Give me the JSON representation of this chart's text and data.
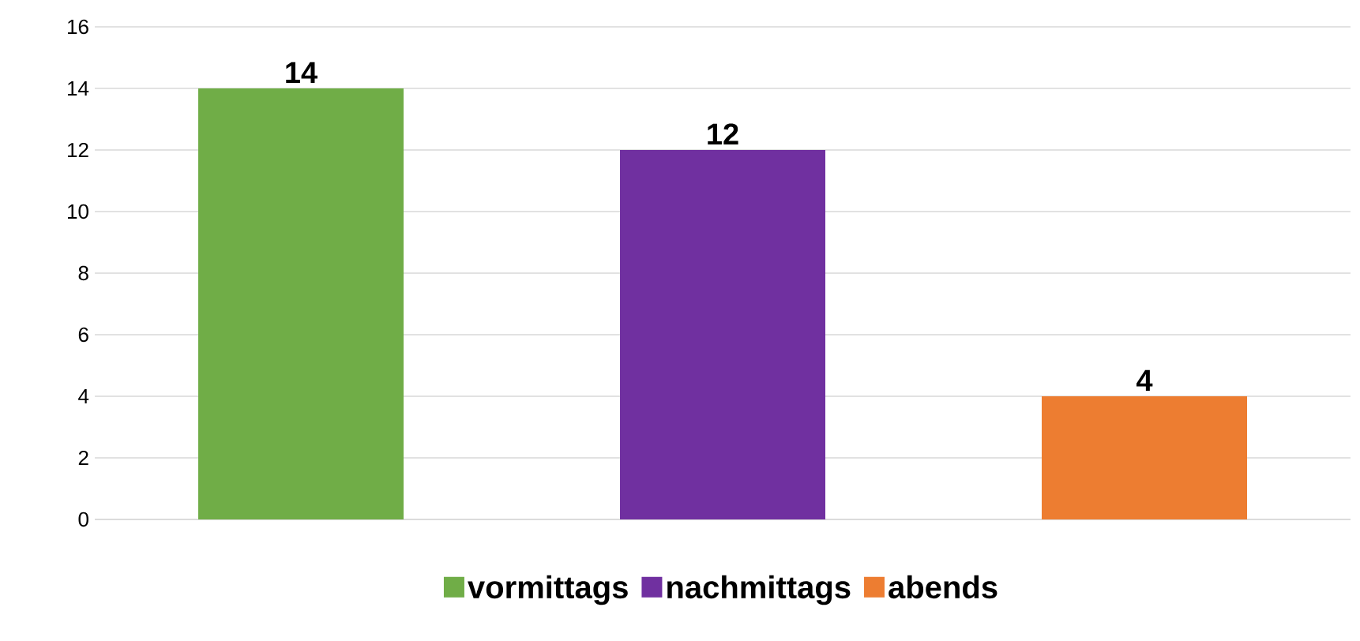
{
  "chart_data": {
    "type": "bar",
    "categories": [
      null
    ],
    "series": [
      {
        "name": "vormittags",
        "color": "#70ad47",
        "values": [
          14
        ]
      },
      {
        "name": "nachmittags",
        "color": "#7030a0",
        "values": [
          12
        ]
      },
      {
        "name": "abends",
        "color": "#ed7d31",
        "values": [
          4
        ]
      }
    ],
    "ylim": [
      0,
      16
    ],
    "yticks": [
      0,
      2,
      4,
      6,
      8,
      10,
      12,
      14,
      16
    ],
    "grid": "y",
    "legend": "bottom",
    "tick_labels": "y",
    "data_labels": true
  }
}
